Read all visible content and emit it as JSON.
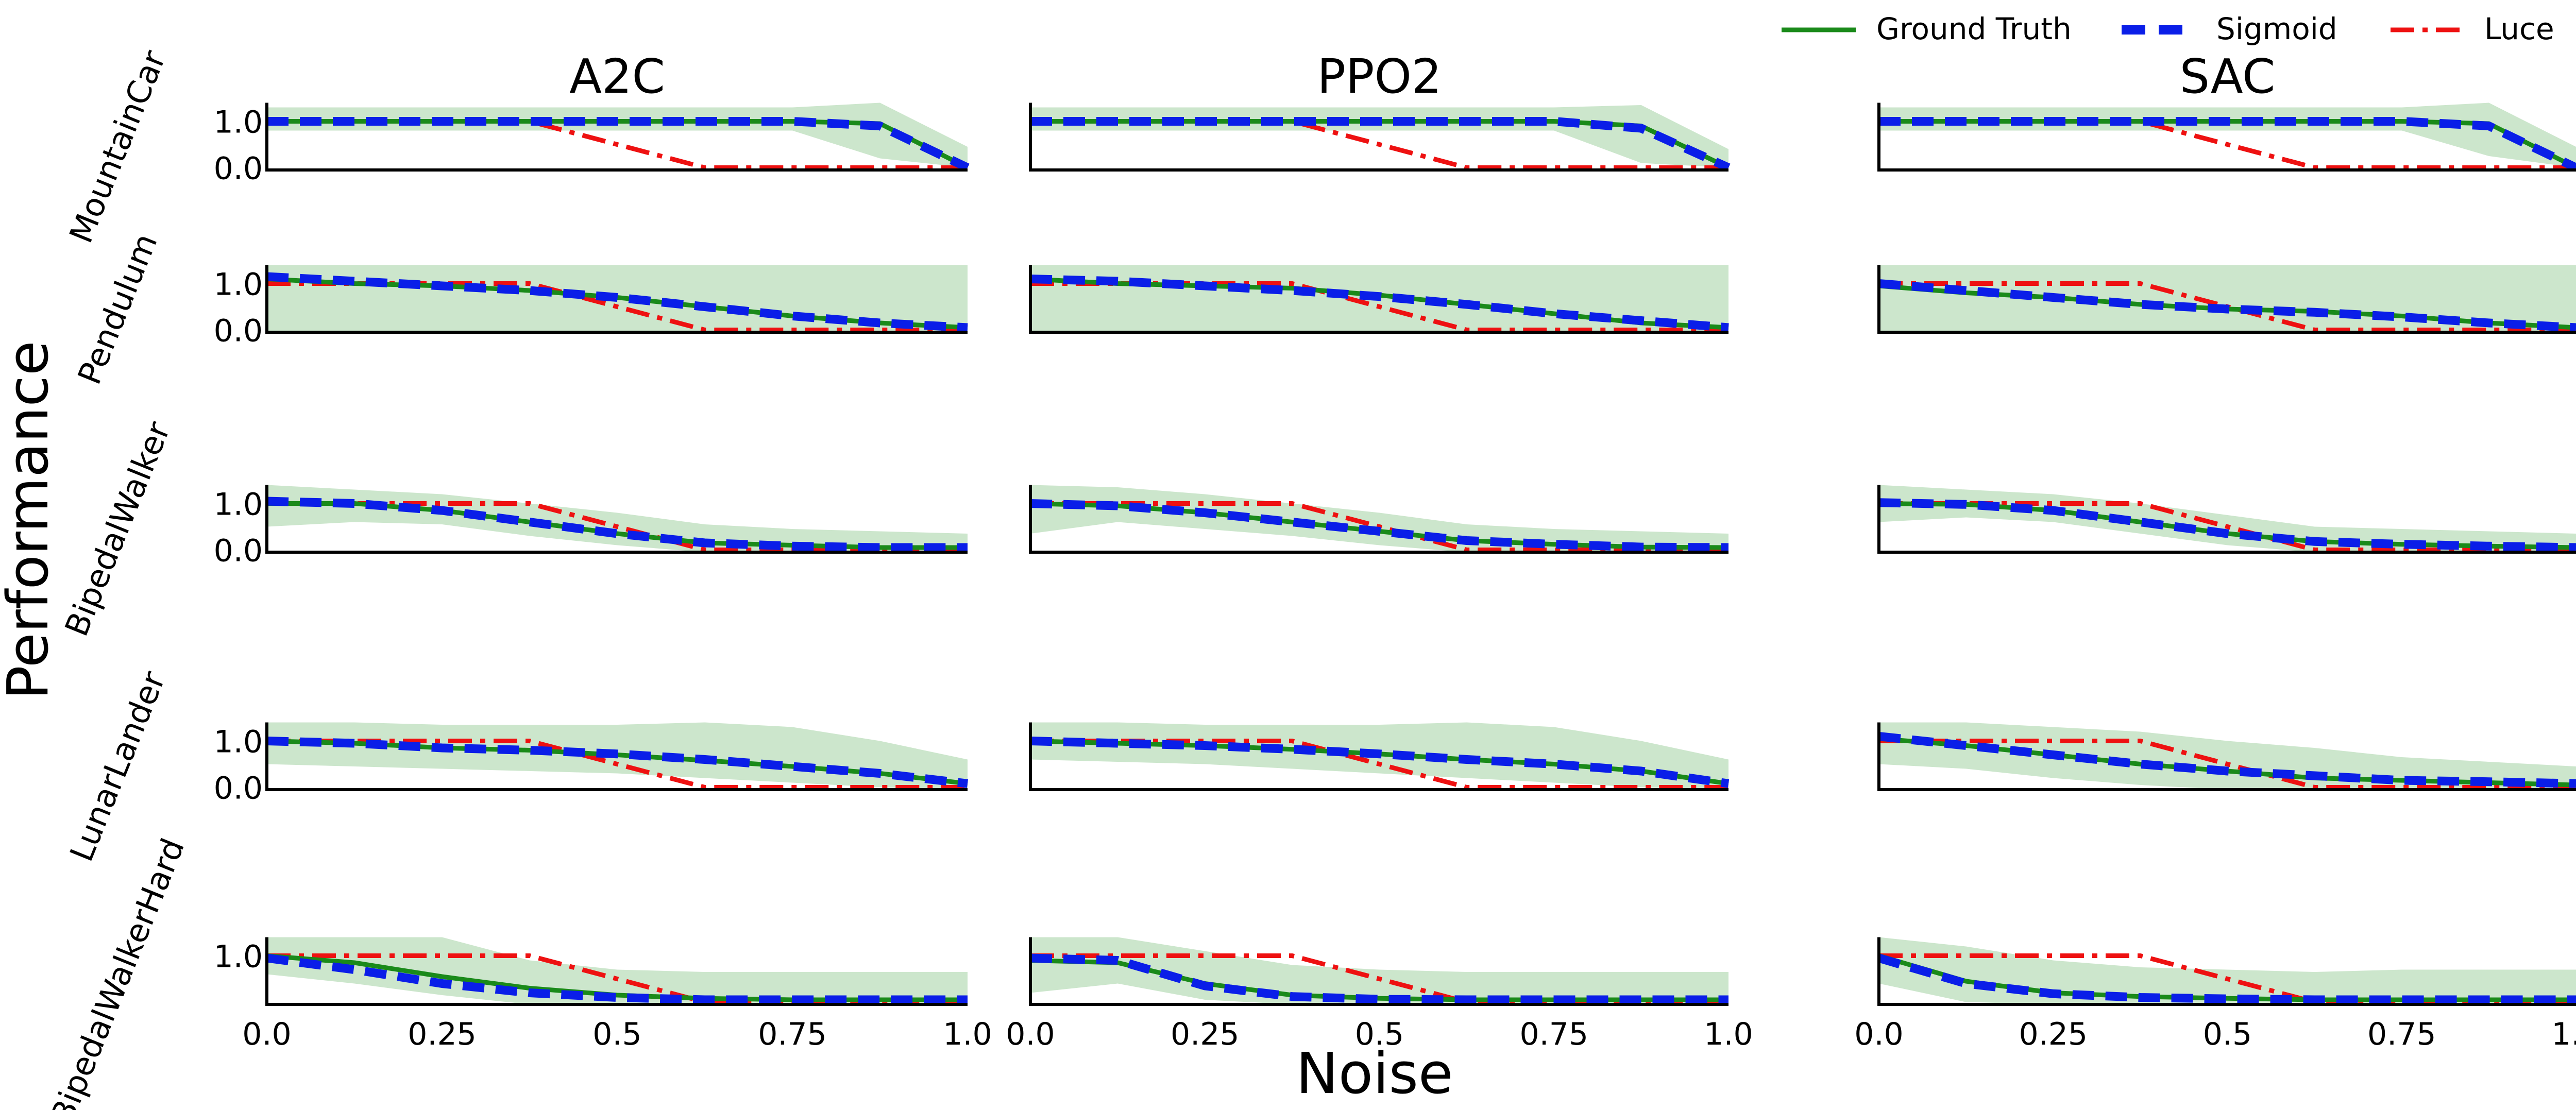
{
  "colors": {
    "ground_truth": "#1a8a1a",
    "sigmoid": "#0a1ee8",
    "luce": "#ee1111",
    "band": "#cce6cc",
    "axis": "#000000"
  },
  "figure": {
    "ylabel": "Performance",
    "xlabel": "Noise"
  },
  "legend": {
    "placement": "top-right",
    "items": [
      {
        "key": "ground_truth",
        "label": "Ground Truth",
        "style": "solid"
      },
      {
        "key": "sigmoid",
        "label": "Sigmoid",
        "style": "dashed"
      },
      {
        "key": "luce",
        "label": "Luce",
        "style": "dashdot"
      }
    ]
  },
  "chart_data": {
    "type": "line",
    "grid": false,
    "columns": [
      "A2C",
      "PPO2",
      "SAC"
    ],
    "rows": [
      "MountainCar",
      "Pendulum",
      "BipedalWalker",
      "LunarLander",
      "BipedalWalkerHard"
    ],
    "x": [
      0,
      0.125,
      0.25,
      0.375,
      0.5,
      0.625,
      0.75,
      0.875,
      1.0
    ],
    "xlim": [
      0,
      1
    ],
    "xticks": [
      0.0,
      0.25,
      0.5,
      0.75,
      1.0
    ],
    "xticklabels": [
      "0.0",
      "0.25",
      "0.5",
      "0.75",
      "1.0"
    ],
    "ylim": [
      -0.05,
      1.4
    ],
    "yticks_by_row": [
      [
        {
          "v": 1.0,
          "label": "1.0"
        },
        {
          "v": 0.0,
          "label": "0.0"
        }
      ],
      [
        {
          "v": 1.0,
          "label": "1.0"
        },
        {
          "v": 0.0,
          "label": "0.0"
        }
      ],
      [
        {
          "v": 1.0,
          "label": "1.0"
        },
        {
          "v": 0.0,
          "label": "0.0"
        }
      ],
      [
        {
          "v": 1.0,
          "label": "1.0"
        },
        {
          "v": 0.0,
          "label": "0.0"
        }
      ],
      [
        {
          "v": 1.0,
          "label": "1.0"
        }
      ]
    ],
    "luce_by_row": [
      [
        1.0,
        1.0,
        1.0,
        1.0,
        0.5,
        0.0,
        0.0,
        0.0,
        0.0
      ],
      [
        1.0,
        1.0,
        1.0,
        1.0,
        0.5,
        0.0,
        0.0,
        0.0,
        0.0
      ],
      [
        1.0,
        1.0,
        1.0,
        1.0,
        0.5,
        0.0,
        0.0,
        0.0,
        0.0
      ],
      [
        1.0,
        1.0,
        1.0,
        1.0,
        0.5,
        0.0,
        0.0,
        0.0,
        0.0
      ],
      [
        1.0,
        1.0,
        1.0,
        1.0,
        0.5,
        0.0,
        0.0,
        0.0,
        0.0
      ]
    ],
    "panels": [
      [
        {
          "gt": [
            1.0,
            1.0,
            1.0,
            1.0,
            1.0,
            1.0,
            1.0,
            0.95,
            0.0
          ],
          "sig": [
            1.0,
            1.0,
            1.0,
            1.0,
            1.0,
            1.0,
            1.0,
            0.9,
            0.0
          ],
          "lo": [
            0.8,
            0.8,
            0.8,
            0.8,
            0.8,
            0.8,
            0.8,
            0.2,
            0.0
          ],
          "hi": [
            1.3,
            1.3,
            1.3,
            1.3,
            1.3,
            1.3,
            1.3,
            1.4,
            0.45
          ]
        },
        {
          "gt": [
            1.0,
            1.0,
            1.0,
            1.0,
            1.0,
            1.0,
            1.0,
            0.9,
            0.0
          ],
          "sig": [
            1.0,
            1.0,
            1.0,
            1.0,
            1.0,
            1.0,
            1.0,
            0.85,
            0.0
          ],
          "lo": [
            0.8,
            0.8,
            0.8,
            0.8,
            0.8,
            0.8,
            0.8,
            0.1,
            0.0
          ],
          "hi": [
            1.3,
            1.3,
            1.3,
            1.3,
            1.3,
            1.3,
            1.3,
            1.35,
            0.4
          ]
        },
        {
          "gt": [
            1.0,
            1.0,
            1.0,
            1.0,
            1.0,
            1.0,
            1.0,
            0.95,
            0.0
          ],
          "sig": [
            1.0,
            1.0,
            1.0,
            1.0,
            1.0,
            1.0,
            1.0,
            0.9,
            0.0
          ],
          "lo": [
            0.8,
            0.8,
            0.8,
            0.8,
            0.8,
            0.8,
            0.8,
            0.25,
            0.0
          ],
          "hi": [
            1.3,
            1.3,
            1.3,
            1.3,
            1.3,
            1.3,
            1.3,
            1.4,
            0.45
          ]
        }
      ],
      [
        {
          "gt": [
            1.1,
            1.0,
            0.95,
            0.85,
            0.7,
            0.5,
            0.3,
            0.15,
            0.05
          ],
          "sig": [
            1.15,
            1.05,
            0.95,
            0.85,
            0.7,
            0.5,
            0.3,
            0.15,
            0.05
          ],
          "lo": [
            -0.05,
            -0.05,
            -0.05,
            -0.05,
            -0.05,
            -0.05,
            -0.05,
            -0.05,
            -0.05
          ],
          "hi": [
            1.4,
            1.4,
            1.4,
            1.4,
            1.4,
            1.4,
            1.4,
            1.4,
            1.4
          ]
        },
        {
          "gt": [
            1.1,
            1.0,
            0.95,
            0.9,
            0.75,
            0.55,
            0.35,
            0.15,
            0.05
          ],
          "sig": [
            1.1,
            1.05,
            0.95,
            0.85,
            0.72,
            0.55,
            0.35,
            0.2,
            0.05
          ],
          "lo": [
            -0.05,
            -0.05,
            -0.05,
            -0.05,
            -0.05,
            -0.05,
            -0.05,
            -0.05,
            -0.05
          ],
          "hi": [
            1.4,
            1.4,
            1.4,
            1.4,
            1.4,
            1.4,
            1.4,
            1.4,
            1.4
          ]
        },
        {
          "gt": [
            0.95,
            0.8,
            0.7,
            0.55,
            0.45,
            0.4,
            0.3,
            0.15,
            0.05
          ],
          "sig": [
            1.0,
            0.85,
            0.7,
            0.55,
            0.45,
            0.38,
            0.28,
            0.15,
            0.05
          ],
          "lo": [
            -0.05,
            -0.05,
            -0.05,
            -0.05,
            -0.05,
            -0.05,
            -0.05,
            -0.05,
            -0.05
          ],
          "hi": [
            1.4,
            1.4,
            1.4,
            1.4,
            1.4,
            1.4,
            1.4,
            1.4,
            1.4
          ]
        }
      ],
      [
        {
          "gt": [
            1.0,
            1.0,
            0.85,
            0.6,
            0.35,
            0.15,
            0.1,
            0.05,
            0.05
          ],
          "sig": [
            1.05,
            1.0,
            0.85,
            0.6,
            0.35,
            0.15,
            0.08,
            0.05,
            0.05
          ],
          "lo": [
            0.5,
            0.6,
            0.55,
            0.3,
            0.1,
            -0.05,
            -0.05,
            -0.05,
            -0.05
          ],
          "hi": [
            1.4,
            1.3,
            1.2,
            1.0,
            0.8,
            0.55,
            0.45,
            0.4,
            0.35
          ]
        },
        {
          "gt": [
            1.0,
            0.95,
            0.8,
            0.6,
            0.4,
            0.2,
            0.12,
            0.06,
            0.05
          ],
          "sig": [
            1.0,
            0.95,
            0.8,
            0.6,
            0.4,
            0.2,
            0.12,
            0.06,
            0.05
          ],
          "lo": [
            0.35,
            0.6,
            0.45,
            0.3,
            0.1,
            -0.05,
            -0.05,
            -0.05,
            -0.05
          ],
          "hi": [
            1.4,
            1.35,
            1.2,
            1.0,
            0.8,
            0.55,
            0.45,
            0.4,
            0.35
          ]
        },
        {
          "gt": [
            1.0,
            0.98,
            0.85,
            0.6,
            0.35,
            0.18,
            0.12,
            0.08,
            0.05
          ],
          "sig": [
            1.02,
            0.98,
            0.85,
            0.6,
            0.35,
            0.18,
            0.12,
            0.08,
            0.05
          ],
          "lo": [
            0.6,
            0.7,
            0.6,
            0.35,
            0.1,
            -0.05,
            -0.05,
            -0.05,
            -0.05
          ],
          "hi": [
            1.4,
            1.3,
            1.2,
            1.0,
            0.75,
            0.5,
            0.45,
            0.4,
            0.35
          ]
        }
      ],
      [
        {
          "gt": [
            1.0,
            0.95,
            0.85,
            0.8,
            0.7,
            0.58,
            0.45,
            0.3,
            0.08
          ],
          "sig": [
            1.0,
            0.95,
            0.85,
            0.8,
            0.72,
            0.6,
            0.45,
            0.3,
            0.08
          ],
          "lo": [
            0.5,
            0.45,
            0.4,
            0.35,
            0.3,
            0.2,
            0.1,
            0.0,
            -0.05
          ],
          "hi": [
            1.4,
            1.4,
            1.35,
            1.35,
            1.35,
            1.4,
            1.3,
            1.0,
            0.6
          ]
        },
        {
          "gt": [
            1.0,
            0.95,
            0.9,
            0.82,
            0.72,
            0.6,
            0.5,
            0.35,
            0.08
          ],
          "sig": [
            1.0,
            0.95,
            0.9,
            0.82,
            0.72,
            0.6,
            0.5,
            0.35,
            0.08
          ],
          "lo": [
            0.6,
            0.55,
            0.5,
            0.4,
            0.3,
            0.2,
            0.1,
            0.0,
            -0.05
          ],
          "hi": [
            1.4,
            1.4,
            1.35,
            1.35,
            1.35,
            1.4,
            1.3,
            1.0,
            0.6
          ]
        },
        {
          "gt": [
            1.05,
            0.9,
            0.7,
            0.5,
            0.35,
            0.2,
            0.15,
            0.1,
            0.05
          ],
          "sig": [
            1.1,
            0.9,
            0.7,
            0.5,
            0.35,
            0.25,
            0.15,
            0.12,
            0.08
          ],
          "lo": [
            0.5,
            0.4,
            0.2,
            0.05,
            -0.05,
            -0.05,
            -0.05,
            -0.05,
            -0.05
          ],
          "hi": [
            1.4,
            1.4,
            1.3,
            1.2,
            1.0,
            0.85,
            0.65,
            0.55,
            0.45
          ]
        }
      ],
      [
        {
          "gt": [
            1.0,
            0.85,
            0.55,
            0.3,
            0.15,
            0.08,
            0.05,
            0.05,
            0.05
          ],
          "sig": [
            0.95,
            0.7,
            0.4,
            0.2,
            0.1,
            0.05,
            0.05,
            0.05,
            0.05
          ],
          "lo": [
            0.6,
            0.4,
            0.15,
            -0.05,
            -0.05,
            -0.05,
            -0.05,
            -0.05,
            -0.05
          ],
          "hi": [
            1.4,
            1.4,
            1.4,
            0.9,
            0.7,
            0.65,
            0.65,
            0.65,
            0.65
          ]
        },
        {
          "gt": [
            0.9,
            0.85,
            0.4,
            0.15,
            0.08,
            0.05,
            0.05,
            0.05,
            0.05
          ],
          "sig": [
            0.95,
            0.9,
            0.35,
            0.12,
            0.06,
            0.05,
            0.05,
            0.05,
            0.05
          ],
          "lo": [
            0.2,
            0.4,
            0.05,
            -0.05,
            -0.05,
            -0.05,
            -0.05,
            -0.05,
            -0.05
          ],
          "hi": [
            1.4,
            1.4,
            1.1,
            0.8,
            0.7,
            0.65,
            0.65,
            0.65,
            0.65
          ]
        },
        {
          "gt": [
            1.0,
            0.45,
            0.2,
            0.12,
            0.08,
            0.05,
            0.05,
            0.05,
            0.05
          ],
          "sig": [
            0.95,
            0.4,
            0.18,
            0.1,
            0.07,
            0.05,
            0.05,
            0.05,
            0.05
          ],
          "lo": [
            0.4,
            0.0,
            -0.05,
            -0.05,
            -0.05,
            -0.05,
            -0.05,
            -0.05,
            -0.05
          ],
          "hi": [
            1.4,
            1.2,
            0.9,
            0.75,
            0.7,
            0.65,
            0.7,
            0.7,
            0.7
          ]
        }
      ]
    ]
  }
}
